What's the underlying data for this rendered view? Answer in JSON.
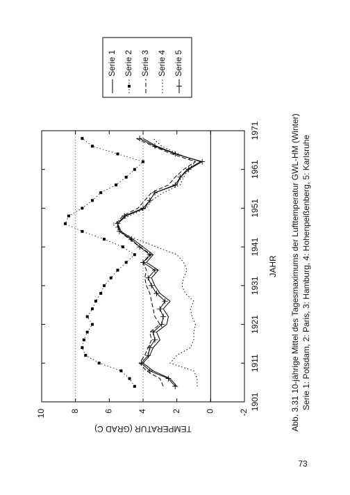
{
  "chart_data": {
    "type": "line",
    "x_label": "JAHR",
    "y_label": "TEMPERATUR (GRAD C)",
    "caption": [
      "Abb. 3.31 10-jährige Mittel des Tagesmaximums der Lufttemperatur GWL-HM (Winter)",
      "Serie 1: Potsdam, 2: Paris, 3: Hamburg, 4: Hohenpeißenberg, 5: Karlsruhe"
    ],
    "x": [
      1905,
      1907,
      1909,
      1911,
      1913,
      1915,
      1917,
      1919,
      1921,
      1923,
      1925,
      1927,
      1929,
      1931,
      1933,
      1935,
      1937,
      1939,
      1941,
      1943,
      1945,
      1947,
      1949,
      1951,
      1953,
      1955,
      1957,
      1959,
      1961,
      1963,
      1965,
      1967,
      1969
    ],
    "xlim": [
      1901,
      1971
    ],
    "xticks": [
      1901,
      1911,
      1921,
      1931,
      1941,
      1951,
      1961,
      1971
    ],
    "ylim": [
      -2,
      10
    ],
    "yticks": [
      -2,
      0,
      2,
      4,
      6,
      8,
      10
    ],
    "grid_lines": [
      4,
      8
    ],
    "reference_line": 0,
    "legend": "top-right",
    "series": [
      {
        "name": "Serie 1",
        "color": "#000000",
        "style": "solid",
        "marker": "none",
        "values": [
          2.0,
          2.4,
          3.4,
          4.0,
          3.6,
          3.4,
          3.0,
          3.2,
          2.6,
          2.5,
          2.8,
          2.4,
          3.0,
          3.3,
          3.5,
          3.1,
          3.8,
          3.4,
          4.0,
          4.6,
          5.3,
          5.5,
          5.0,
          3.9,
          3.6,
          3.3,
          2.0,
          1.8,
          1.4,
          0.6,
          2.0,
          3.2,
          4.0
        ]
      },
      {
        "name": "Serie 2",
        "color": "#000000",
        "style": "dotted",
        "marker": "square",
        "values": [
          4.5,
          4.8,
          5.3,
          6.6,
          7.4,
          7.6,
          7.5,
          7.3,
          7.0,
          7.3,
          7.0,
          6.8,
          6.5,
          6.3,
          5.9,
          5.5,
          5.0,
          4.5,
          5.2,
          6.3,
          7.6,
          8.6,
          8.4,
          7.6,
          7.0,
          6.5,
          5.6,
          5.0,
          4.5,
          4.0,
          5.5,
          7.0,
          7.6
        ]
      },
      {
        "name": "Serie 3",
        "color": "#000000",
        "style": "dashed",
        "marker": "none",
        "values": [
          2.8,
          3.0,
          3.8,
          4.2,
          3.9,
          3.7,
          3.5,
          3.6,
          3.0,
          3.3,
          3.4,
          3.5,
          3.6,
          3.8,
          3.9,
          3.8,
          4.0,
          3.5,
          4.2,
          4.8,
          5.4,
          5.6,
          5.2,
          4.3,
          3.9,
          3.5,
          2.5,
          2.1,
          1.6,
          0.9,
          2.3,
          3.4,
          4.4
        ]
      },
      {
        "name": "Serie 4",
        "color": "#000000",
        "style": "dotted",
        "marker": "none",
        "values": [
          0.8,
          0.8,
          1.0,
          2.4,
          2.0,
          1.2,
          1.0,
          1.0,
          0.9,
          1.1,
          1.2,
          1.0,
          1.5,
          1.7,
          1.6,
          1.4,
          1.6,
          2.0,
          3.2,
          4.4,
          5.4,
          5.8,
          4.8,
          3.8,
          3.5,
          2.8,
          1.8,
          1.6,
          1.3,
          0.9,
          1.9,
          2.9,
          3.4
        ]
      },
      {
        "name": "Serie 5",
        "color": "#000000",
        "style": "solid",
        "marker": "plus",
        "values": [
          2.1,
          2.5,
          3.6,
          4.1,
          3.7,
          3.6,
          3.3,
          3.4,
          2.9,
          2.8,
          3.0,
          2.7,
          3.2,
          3.5,
          3.7,
          3.3,
          4.0,
          3.6,
          4.2,
          4.7,
          5.4,
          5.5,
          5.1,
          4.0,
          3.6,
          3.3,
          2.1,
          1.8,
          1.3,
          0.5,
          2.1,
          3.3,
          4.2
        ]
      }
    ]
  },
  "page_number": "73"
}
